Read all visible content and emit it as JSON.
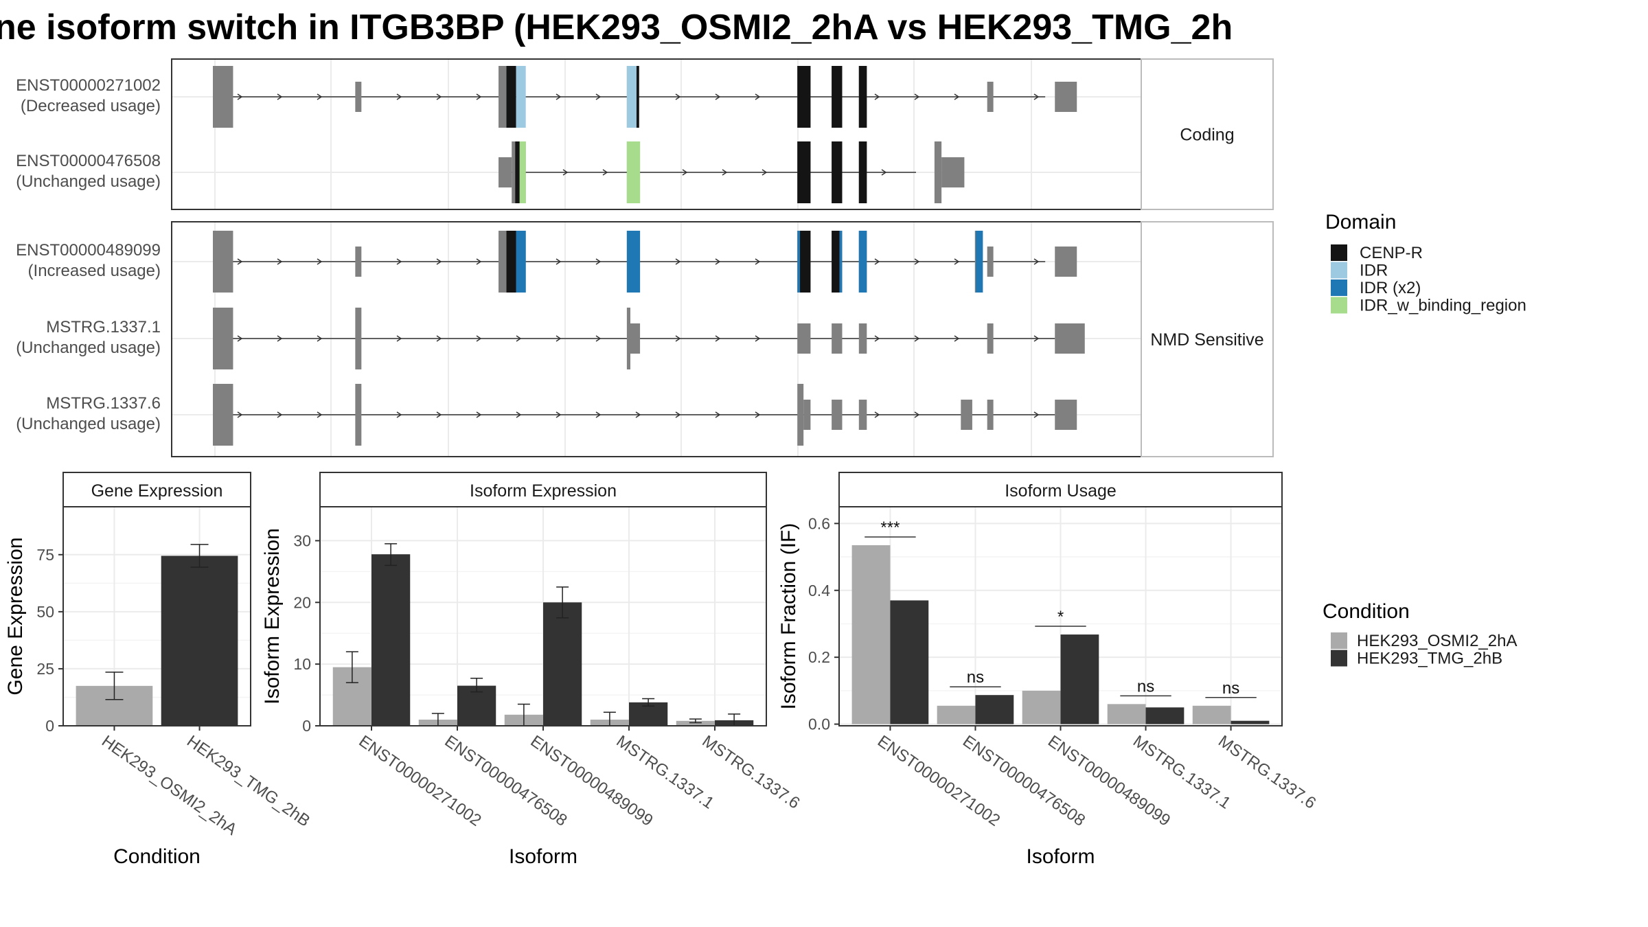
{
  "title": "ne isoform switch in ITGB3BP (HEK293_OSMI2_2hA vs HEK293_TMG_2h",
  "colors": {
    "exon": "#808080",
    "cenp_r": "#141414",
    "idr": "#9ecae1",
    "idr_x2": "#1f78b4",
    "idr_binding": "#a6dc8c",
    "cond_a": "#aaaaaa",
    "cond_b": "#333333"
  },
  "structure": {
    "x_domain": [
      0,
      1000
    ],
    "panels": [
      {
        "label": "Coding",
        "transcripts": [
          {
            "id": "ENST00000271002",
            "usage": "(Decreased usage)",
            "start": 0,
            "end": 947,
            "exons": [
              [
                0,
                23,
                "b"
              ],
              [
                162,
                169,
                "s"
              ],
              [
                325,
                343,
                "b"
              ],
              [
                471,
                482,
                "b"
              ],
              [
                665,
                680,
                "b"
              ],
              [
                704,
                716,
                "b"
              ],
              [
                735,
                744,
                "b"
              ],
              [
                881,
                888,
                "s"
              ],
              [
                958,
                983,
                "s"
              ]
            ],
            "domains": [
              [
                334,
                345,
                "cenp_r"
              ],
              [
                345,
                356,
                "idr"
              ],
              [
                471,
                482,
                "idr"
              ],
              [
                482,
                485,
                "cenp_r"
              ],
              [
                665,
                680,
                "cenp_r"
              ],
              [
                704,
                716,
                "cenp_r"
              ],
              [
                735,
                744,
                "cenp_r"
              ]
            ]
          },
          {
            "id": "ENST00000476508",
            "usage": "(Unchanged usage)",
            "start": 325,
            "end": 800,
            "exons": [
              [
                325,
                340,
                "s"
              ],
              [
                340,
                356,
                "b"
              ],
              [
                471,
                486,
                "b"
              ],
              [
                665,
                680,
                "b"
              ],
              [
                704,
                716,
                "b"
              ],
              [
                735,
                744,
                "b"
              ],
              [
                821,
                829,
                "b"
              ],
              [
                829,
                855,
                "s"
              ]
            ],
            "domains": [
              [
                344,
                349,
                "cenp_r"
              ],
              [
                349,
                356,
                "idr_binding"
              ],
              [
                471,
                486,
                "idr_binding"
              ],
              [
                665,
                680,
                "cenp_r"
              ],
              [
                704,
                716,
                "cenp_r"
              ],
              [
                735,
                744,
                "cenp_r"
              ]
            ]
          }
        ]
      },
      {
        "label": "NMD Sensitive",
        "transcripts": [
          {
            "id": "ENST00000489099",
            "usage": "(Increased usage)",
            "start": 0,
            "end": 947,
            "exons": [
              [
                0,
                23,
                "b"
              ],
              [
                162,
                169,
                "s"
              ],
              [
                325,
                356,
                "b"
              ],
              [
                471,
                486,
                "b"
              ],
              [
                665,
                680,
                "b"
              ],
              [
                704,
                716,
                "b"
              ],
              [
                735,
                744,
                "b"
              ],
              [
                867,
                876,
                "b"
              ],
              [
                881,
                888,
                "s"
              ],
              [
                958,
                983,
                "s"
              ]
            ],
            "domains": [
              [
                334,
                345,
                "cenp_r"
              ],
              [
                345,
                356,
                "idr_x2"
              ],
              [
                471,
                486,
                "idr_x2"
              ],
              [
                665,
                668,
                "idr_x2"
              ],
              [
                668,
                680,
                "cenp_r"
              ],
              [
                704,
                713,
                "cenp_r"
              ],
              [
                713,
                716,
                "idr_x2"
              ],
              [
                735,
                744,
                "idr_x2"
              ],
              [
                868,
                876,
                "idr_x2"
              ]
            ]
          },
          {
            "id": "MSTRG.1337.1",
            "usage": "(Unchanged usage)",
            "start": 0,
            "end": 958,
            "exons": [
              [
                0,
                23,
                "b"
              ],
              [
                162,
                169,
                "b"
              ],
              [
                471,
                475,
                "b"
              ],
              [
                475,
                486,
                "s"
              ],
              [
                665,
                680,
                "s"
              ],
              [
                704,
                716,
                "s"
              ],
              [
                735,
                744,
                "s"
              ],
              [
                881,
                888,
                "s"
              ],
              [
                958,
                992,
                "s"
              ]
            ],
            "domains": []
          },
          {
            "id": "MSTRG.1337.6",
            "usage": "(Unchanged usage)",
            "start": 0,
            "end": 958,
            "exons": [
              [
                0,
                23,
                "b"
              ],
              [
                162,
                169,
                "b"
              ],
              [
                665,
                672,
                "b"
              ],
              [
                672,
                680,
                "s"
              ],
              [
                704,
                716,
                "s"
              ],
              [
                735,
                744,
                "s"
              ],
              [
                851,
                864,
                "s"
              ],
              [
                881,
                888,
                "s"
              ],
              [
                958,
                983,
                "s"
              ]
            ],
            "domains": []
          }
        ]
      }
    ],
    "legend_title": "Domain",
    "legend_items": [
      {
        "label": "CENP-R",
        "key": "cenp_r"
      },
      {
        "label": "IDR",
        "key": "idr"
      },
      {
        "label": "IDR (x2)",
        "key": "idr_x2"
      },
      {
        "label": "IDR_w_binding_region",
        "key": "idr_binding"
      }
    ]
  },
  "chart_data": [
    {
      "type": "bar",
      "title": "Gene Expression",
      "xlabel": "Condition",
      "ylabel": "Gene Expression",
      "ylim": [
        0,
        96
      ],
      "yticks": [
        0,
        25,
        50,
        75
      ],
      "categories": [
        "HEK293_OSMI2_2hA",
        "HEK293_TMG_2hB"
      ],
      "values": [
        17.5,
        74.5
      ],
      "errors": [
        [
          11.5,
          23.5
        ],
        [
          69.5,
          79.5
        ]
      ]
    },
    {
      "type": "bar",
      "title": "Isoform Expression",
      "xlabel": "Isoform",
      "ylabel": "Isoform Expression",
      "ylim": [
        0,
        35.5
      ],
      "yticks": [
        0,
        10,
        20,
        30
      ],
      "categories": [
        "ENST00000271002",
        "ENST00000476508",
        "ENST00000489099",
        "MSTRG.1337.1",
        "MSTRG.1337.6"
      ],
      "series": [
        {
          "name": "HEK293_OSMI2_2hA",
          "values": [
            9.5,
            1.0,
            1.8,
            1.0,
            0.8
          ],
          "errors": [
            [
              7.0,
              12.0
            ],
            [
              0.0,
              2.0
            ],
            [
              0.0,
              3.5
            ],
            [
              0.0,
              2.2
            ],
            [
              0.5,
              1.1
            ]
          ]
        },
        {
          "name": "HEK293_TMG_2hB",
          "values": [
            27.8,
            6.5,
            20.0,
            3.8,
            0.9
          ],
          "errors": [
            [
              26.0,
              29.5
            ],
            [
              5.5,
              7.7
            ],
            [
              17.5,
              22.5
            ],
            [
              3.2,
              4.4
            ],
            [
              0.0,
              1.9
            ]
          ]
        }
      ]
    },
    {
      "type": "bar",
      "title": "Isoform Usage",
      "xlabel": "Isoform",
      "ylabel": "Isoform Fraction (IF)",
      "ylim": [
        -0.005,
        0.65
      ],
      "yticks": [
        0.0,
        0.2,
        0.4,
        0.6
      ],
      "ytick_labels": [
        "0.0",
        "0.2",
        "0.4",
        "0.6"
      ],
      "categories": [
        "ENST00000271002",
        "ENST00000476508",
        "ENST00000489099",
        "MSTRG.1337.1",
        "MSTRG.1337.6"
      ],
      "series": [
        {
          "name": "HEK293_OSMI2_2hA",
          "values": [
            0.535,
            0.055,
            0.1,
            0.06,
            0.055
          ]
        },
        {
          "name": "HEK293_TMG_2hB",
          "values": [
            0.37,
            0.087,
            0.268,
            0.05,
            0.01
          ]
        }
      ],
      "significance": [
        "***",
        "ns",
        "*",
        "ns",
        "ns"
      ]
    }
  ],
  "condition_legend": {
    "title": "Condition",
    "items": [
      {
        "label": "HEK293_OSMI2_2hA",
        "key": "cond_a"
      },
      {
        "label": "HEK293_TMG_2hB",
        "key": "cond_b"
      }
    ]
  }
}
